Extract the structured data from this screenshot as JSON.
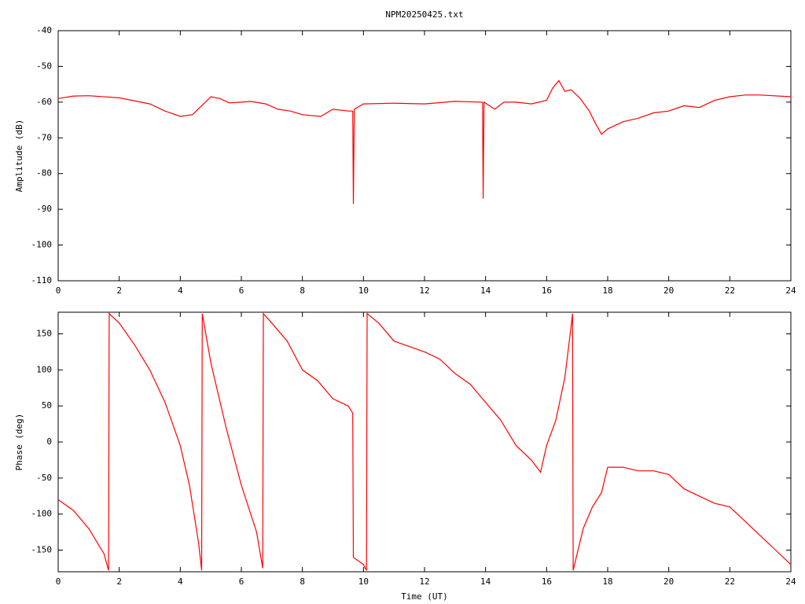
{
  "chart_data": [
    {
      "type": "line",
      "title": "NPM20250425.txt",
      "ylabel": "Amplitude (dB)",
      "color": "#ff0000",
      "x": [
        0,
        0.5,
        1,
        2,
        3,
        3.5,
        4,
        4.4,
        4.7,
        5,
        5.3,
        5.6,
        6,
        6.3,
        6.8,
        7.2,
        7.6,
        8,
        8.6,
        9,
        9.5,
        9.65,
        9.67,
        9.7,
        10,
        11,
        12,
        13,
        13.9,
        13.92,
        13.95,
        14.3,
        14.6,
        15,
        15.5,
        16,
        16.2,
        16.4,
        16.6,
        16.8,
        17.1,
        17.4,
        17.6,
        17.8,
        18,
        18.5,
        19,
        19.5,
        20,
        20.5,
        21,
        21.5,
        22,
        22.5,
        23,
        24
      ],
      "values": [
        -59,
        -58.3,
        -58.2,
        -58.8,
        -60.5,
        -62.5,
        -64,
        -63.5,
        -61,
        -58.5,
        -59,
        -60.2,
        -60,
        -59.8,
        -60.5,
        -62,
        -62.5,
        -63.5,
        -64,
        -62,
        -62.5,
        -62.5,
        -88.5,
        -62,
        -60.5,
        -60.3,
        -60.5,
        -59.8,
        -60,
        -87,
        -60,
        -62,
        -60,
        -60,
        -60.5,
        -59.5,
        -56,
        -54,
        -57,
        -56.5,
        -59,
        -62.5,
        -66,
        -69,
        -67.5,
        -65.5,
        -64.5,
        -63,
        -62.5,
        -61,
        -61.5,
        -59.5,
        -58.5,
        -58,
        -58,
        -58.5
      ],
      "xlim": [
        0,
        24
      ],
      "xticks": [
        0,
        2,
        4,
        6,
        8,
        10,
        12,
        14,
        16,
        18,
        20,
        22,
        24
      ],
      "ylim": [
        -110,
        -40
      ],
      "yticks": [
        -110,
        -100,
        -90,
        -80,
        -70,
        -60,
        -50,
        -40
      ]
    },
    {
      "type": "line",
      "xlabel": "Time (UT)",
      "ylabel": "Phase (deg)",
      "color": "#ff0000",
      "x": [
        0,
        0.5,
        1,
        1.5,
        1.65,
        1.67,
        2,
        2.5,
        3,
        3.5,
        4,
        4.3,
        4.6,
        4.7,
        4.72,
        5,
        5.5,
        6,
        6.5,
        6.7,
        6.72,
        7,
        7.5,
        8,
        8.5,
        9,
        9.5,
        9.65,
        9.67,
        10,
        10.1,
        10.12,
        10.5,
        11,
        12,
        12.5,
        13,
        13.5,
        14,
        14.5,
        15,
        15.5,
        15.8,
        16,
        16.3,
        16.6,
        16.8,
        16.85,
        16.87,
        17.2,
        17.5,
        17.8,
        18,
        18.5,
        19,
        19.5,
        20,
        20.5,
        21,
        21.5,
        22,
        22.5,
        23,
        23.5,
        24
      ],
      "values": [
        -80,
        -95,
        -120,
        -155,
        -178,
        178,
        165,
        135,
        100,
        55,
        -5,
        -60,
        -140,
        -178,
        178,
        110,
        20,
        -60,
        -125,
        -175,
        178,
        165,
        140,
        100,
        85,
        60,
        50,
        40,
        -160,
        -170,
        -178,
        178,
        165,
        140,
        125,
        115,
        95,
        80,
        55,
        30,
        -5,
        -25,
        -42,
        -5,
        30,
        90,
        160,
        178,
        -178,
        -120,
        -90,
        -70,
        -35,
        -35,
        -40,
        -40,
        -45,
        -65,
        -75,
        -85,
        -90,
        -110,
        -130,
        -150,
        -170
      ],
      "xlim": [
        0,
        24
      ],
      "xticks": [
        0,
        2,
        4,
        6,
        8,
        10,
        12,
        14,
        16,
        18,
        20,
        22,
        24
      ],
      "ylim": [
        -180,
        180
      ],
      "yticks": [
        -150,
        -100,
        -50,
        0,
        50,
        100,
        150
      ]
    }
  ]
}
